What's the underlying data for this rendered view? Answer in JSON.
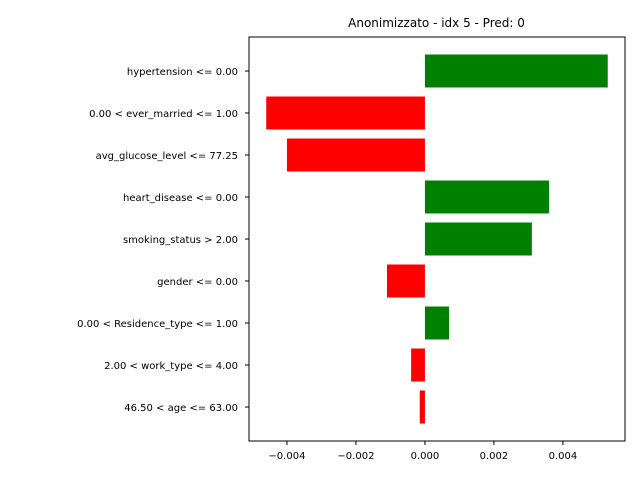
{
  "chart_data": {
    "type": "bar",
    "orientation": "horizontal",
    "title": "Anonimizzato - idx 5 - Pred: 0",
    "xlabel": "",
    "ylabel": "",
    "categories": [
      "hypertension <= 0.00",
      "0.00 < ever_married <= 1.00",
      "avg_glucose_level <= 77.25",
      "heart_disease <= 0.00",
      "smoking_status > 2.00",
      "gender <= 0.00",
      "0.00 < Residence_type <= 1.00",
      "2.00 < work_type <= 4.00",
      "46.50 < age <= 63.00"
    ],
    "values": [
      0.0053,
      -0.0046,
      -0.004,
      0.0036,
      0.0031,
      -0.0011,
      0.0007,
      -0.0004,
      -0.00015
    ],
    "xlim": [
      -0.0051,
      0.0058
    ],
    "xticks": [
      -0.004,
      -0.002,
      0.0,
      0.002,
      0.004
    ],
    "xtick_labels": [
      "−0.004",
      "−0.002",
      "0.000",
      "0.002",
      "0.004"
    ],
    "colors": {
      "positive": "#008000",
      "negative": "#ff0000"
    },
    "grid": false,
    "legend": "none"
  }
}
